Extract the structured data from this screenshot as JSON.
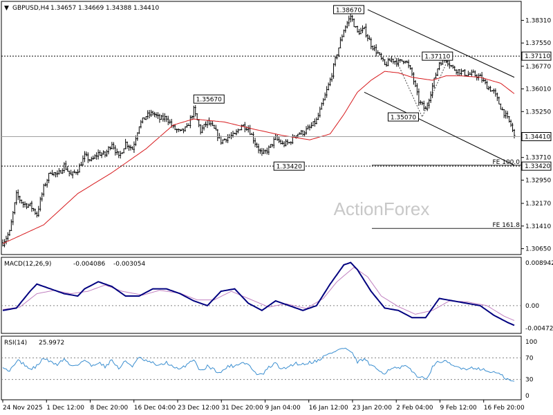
{
  "header": {
    "symbol_label": "GBPUSD,H4",
    "ohlc": [
      "1.34657",
      "1.34669",
      "1.34388",
      "1.34410"
    ]
  },
  "watermark": "ActionForex",
  "colors": {
    "candle": "#000000",
    "ma": "#d7191c",
    "macd_main": "#00007f",
    "macd_signal": "#c080c0",
    "rsi": "#3a8ed0",
    "grid": "#808080",
    "channel": "#000000"
  },
  "chart_data": [
    {
      "type": "candlestick",
      "name": "GBPUSD,H4",
      "ylim": [
        1.305,
        1.389
      ],
      "y_ticks": [
        "1.38310",
        "1.37550",
        "1.36770",
        "1.36010",
        "1.35250",
        "1.34410",
        "1.33710",
        "1.32950",
        "1.32170",
        "1.31410",
        "1.30650"
      ],
      "x_ticks": [
        "24 Nov 2025",
        "1 Dec 12:00",
        "8 Dec 20:00",
        "16 Dec 04:00",
        "23 Dec 12:00",
        "31 Dec 20:00",
        "9 Jan 04:00",
        "16 Jan 12:00",
        "23 Jan 20:00",
        "2 Feb 04:00",
        "9 Feb 12:00",
        "16 Feb 20:00"
      ],
      "close_profile": [
        [
          0,
          1.3085
        ],
        [
          4,
          1.312
        ],
        [
          8,
          1.3245
        ],
        [
          12,
          1.3215
        ],
        [
          16,
          1.321
        ],
        [
          20,
          1.318
        ],
        [
          24,
          1.327
        ],
        [
          28,
          1.3325
        ],
        [
          32,
          1.331
        ],
        [
          36,
          1.3345
        ],
        [
          40,
          1.331
        ],
        [
          44,
          1.333
        ],
        [
          48,
          1.3375
        ],
        [
          52,
          1.336
        ],
        [
          56,
          1.3385
        ],
        [
          60,
          1.338
        ],
        [
          64,
          1.342
        ],
        [
          68,
          1.337
        ],
        [
          72,
          1.342
        ],
        [
          76,
          1.34
        ],
        [
          80,
          1.348
        ],
        [
          84,
          1.351
        ],
        [
          88,
          1.352
        ],
        [
          92,
          1.35
        ],
        [
          96,
          1.3505
        ],
        [
          100,
          1.347
        ],
        [
          104,
          1.3455
        ],
        [
          108,
          1.347
        ],
        [
          112,
          1.353
        ],
        [
          116,
          1.346
        ],
        [
          120,
          1.349
        ],
        [
          124,
          1.3465
        ],
        [
          128,
          1.3425
        ],
        [
          132,
          1.344
        ],
        [
          136,
          1.3445
        ],
        [
          140,
          1.348
        ],
        [
          144,
          1.347
        ],
        [
          148,
          1.342
        ],
        [
          152,
          1.338
        ],
        [
          156,
          1.34
        ],
        [
          160,
          1.3435
        ],
        [
          164,
          1.3415
        ],
        [
          168,
          1.342
        ],
        [
          172,
          1.345
        ],
        [
          176,
          1.3455
        ],
        [
          180,
          1.347
        ],
        [
          184,
          1.3495
        ],
        [
          188,
          1.356
        ],
        [
          192,
          1.363
        ],
        [
          196,
          1.372
        ],
        [
          200,
          1.38
        ],
        [
          204,
          1.3845
        ],
        [
          208,
          1.379
        ],
        [
          212,
          1.38
        ],
        [
          216,
          1.375
        ],
        [
          220,
          1.372
        ],
        [
          224,
          1.368
        ],
        [
          228,
          1.37
        ],
        [
          232,
          1.369
        ],
        [
          236,
          1.37
        ],
        [
          240,
          1.365
        ],
        [
          244,
          1.356
        ],
        [
          248,
          1.353
        ],
        [
          252,
          1.361
        ],
        [
          256,
          1.369
        ],
        [
          260,
          1.37
        ],
        [
          264,
          1.367
        ],
        [
          268,
          1.366
        ],
        [
          272,
          1.365
        ],
        [
          276,
          1.365
        ],
        [
          280,
          1.364
        ],
        [
          284,
          1.361
        ],
        [
          288,
          1.359
        ],
        [
          292,
          1.354
        ],
        [
          296,
          1.35
        ],
        [
          298,
          1.348
        ],
        [
          300,
          1.3441
        ]
      ],
      "ma_profile": [
        [
          0,
          1.3082
        ],
        [
          24,
          1.3145
        ],
        [
          44,
          1.325
        ],
        [
          64,
          1.332
        ],
        [
          84,
          1.34
        ],
        [
          100,
          1.348
        ],
        [
          112,
          1.35
        ],
        [
          130,
          1.349
        ],
        [
          148,
          1.3465
        ],
        [
          164,
          1.3445
        ],
        [
          180,
          1.343
        ],
        [
          192,
          1.345
        ],
        [
          200,
          1.3515
        ],
        [
          208,
          1.359
        ],
        [
          216,
          1.363
        ],
        [
          224,
          1.366
        ],
        [
          232,
          1.3655
        ],
        [
          240,
          1.364
        ],
        [
          252,
          1.363
        ],
        [
          260,
          1.3645
        ],
        [
          268,
          1.3645
        ],
        [
          280,
          1.364
        ],
        [
          292,
          1.362
        ],
        [
          300,
          1.3585
        ]
      ],
      "price_labels": [
        "1.38670",
        "1.37110",
        "1.35670",
        "1.35070",
        "1.33420"
      ],
      "horizontal_levels": [
        {
          "label": "1.37110",
          "style": "dotted"
        },
        {
          "label": "1.34410",
          "style": "solid"
        },
        {
          "label": "1.33420",
          "style": "dotted"
        }
      ],
      "fibo_lines": [
        {
          "label": "FE 100.0",
          "value": 1.3345
        },
        {
          "label": "FE 161.8",
          "value": 1.3133
        }
      ]
    },
    {
      "type": "line",
      "name": "MACD(12,26,9)",
      "values_text": [
        "-0.004086",
        "-0.003054"
      ],
      "ylim": [
        -0.0055,
        0.0098
      ],
      "y_ticks": [
        "0.008942",
        "0.00",
        "-0.004725"
      ],
      "main_profile": [
        [
          0,
          -0.001
        ],
        [
          8,
          -0.0005
        ],
        [
          16,
          0.003
        ],
        [
          20,
          0.0045
        ],
        [
          28,
          0.0035
        ],
        [
          36,
          0.0025
        ],
        [
          44,
          0.002
        ],
        [
          48,
          0.0035
        ],
        [
          56,
          0.005
        ],
        [
          64,
          0.004
        ],
        [
          72,
          0.002
        ],
        [
          80,
          0.002
        ],
        [
          88,
          0.0035
        ],
        [
          96,
          0.0035
        ],
        [
          104,
          0.0025
        ],
        [
          112,
          0.001
        ],
        [
          120,
          0.0
        ],
        [
          128,
          0.003
        ],
        [
          136,
          0.0035
        ],
        [
          144,
          0.0005
        ],
        [
          152,
          -0.001
        ],
        [
          160,
          0.001
        ],
        [
          168,
          0.0
        ],
        [
          176,
          -0.001
        ],
        [
          184,
          0.0
        ],
        [
          192,
          0.0045
        ],
        [
          200,
          0.0085
        ],
        [
          204,
          0.009
        ],
        [
          208,
          0.0075
        ],
        [
          216,
          0.003
        ],
        [
          224,
          -0.0005
        ],
        [
          232,
          -0.001
        ],
        [
          240,
          -0.0025
        ],
        [
          248,
          -0.0025
        ],
        [
          256,
          0.0015
        ],
        [
          264,
          0.001
        ],
        [
          272,
          0.0005
        ],
        [
          280,
          0.0
        ],
        [
          288,
          -0.002
        ],
        [
          296,
          -0.0035
        ],
        [
          300,
          -0.0041
        ]
      ],
      "signal_profile": [
        [
          0,
          -0.0008
        ],
        [
          10,
          -0.0003
        ],
        [
          20,
          0.0025
        ],
        [
          30,
          0.0032
        ],
        [
          40,
          0.0025
        ],
        [
          50,
          0.003
        ],
        [
          60,
          0.0043
        ],
        [
          70,
          0.003
        ],
        [
          82,
          0.0022
        ],
        [
          92,
          0.0032
        ],
        [
          104,
          0.0026
        ],
        [
          114,
          0.0012
        ],
        [
          124,
          0.0012
        ],
        [
          134,
          0.003
        ],
        [
          146,
          0.0012
        ],
        [
          156,
          -0.0003
        ],
        [
          166,
          0.0004
        ],
        [
          178,
          -0.0006
        ],
        [
          188,
          0.0015
        ],
        [
          196,
          0.005
        ],
        [
          206,
          0.008
        ],
        [
          214,
          0.006
        ],
        [
          222,
          0.002
        ],
        [
          232,
          -0.0002
        ],
        [
          242,
          -0.0018
        ],
        [
          252,
          -0.001
        ],
        [
          262,
          0.001
        ],
        [
          272,
          0.0008
        ],
        [
          284,
          0.0
        ],
        [
          294,
          -0.0022
        ],
        [
          300,
          -0.0031
        ]
      ]
    },
    {
      "type": "line",
      "name": "RSI(14)",
      "value_text": "25.9972",
      "ylim": [
        0,
        100
      ],
      "y_ticks": [
        "100",
        "70",
        "30",
        "0"
      ],
      "reference_levels": [
        70,
        30
      ],
      "profile": [
        [
          0,
          55
        ],
        [
          4,
          45
        ],
        [
          8,
          65
        ],
        [
          12,
          60
        ],
        [
          16,
          48
        ],
        [
          20,
          55
        ],
        [
          24,
          70
        ],
        [
          28,
          62
        ],
        [
          32,
          58
        ],
        [
          36,
          68
        ],
        [
          40,
          55
        ],
        [
          44,
          58
        ],
        [
          48,
          66
        ],
        [
          52,
          55
        ],
        [
          56,
          62
        ],
        [
          60,
          54
        ],
        [
          64,
          66
        ],
        [
          68,
          50
        ],
        [
          72,
          64
        ],
        [
          76,
          55
        ],
        [
          80,
          70
        ],
        [
          84,
          64
        ],
        [
          88,
          60
        ],
        [
          92,
          55
        ],
        [
          96,
          62
        ],
        [
          100,
          52
        ],
        [
          104,
          48
        ],
        [
          108,
          58
        ],
        [
          112,
          68
        ],
        [
          116,
          45
        ],
        [
          120,
          55
        ],
        [
          124,
          48
        ],
        [
          128,
          42
        ],
        [
          132,
          55
        ],
        [
          136,
          55
        ],
        [
          140,
          62
        ],
        [
          144,
          58
        ],
        [
          148,
          42
        ],
        [
          152,
          38
        ],
        [
          156,
          52
        ],
        [
          160,
          60
        ],
        [
          164,
          48
        ],
        [
          168,
          55
        ],
        [
          172,
          60
        ],
        [
          176,
          58
        ],
        [
          180,
          62
        ],
        [
          184,
          64
        ],
        [
          188,
          72
        ],
        [
          192,
          78
        ],
        [
          196,
          84
        ],
        [
          200,
          88
        ],
        [
          204,
          82
        ],
        [
          208,
          62
        ],
        [
          212,
          68
        ],
        [
          216,
          55
        ],
        [
          220,
          48
        ],
        [
          224,
          42
        ],
        [
          228,
          52
        ],
        [
          232,
          50
        ],
        [
          236,
          55
        ],
        [
          240,
          45
        ],
        [
          244,
          35
        ],
        [
          248,
          30
        ],
        [
          252,
          52
        ],
        [
          256,
          64
        ],
        [
          260,
          62
        ],
        [
          264,
          55
        ],
        [
          268,
          52
        ],
        [
          272,
          50
        ],
        [
          276,
          52
        ],
        [
          280,
          50
        ],
        [
          284,
          45
        ],
        [
          288,
          44
        ],
        [
          292,
          38
        ],
        [
          296,
          30
        ],
        [
          298,
          27
        ],
        [
          300,
          26
        ]
      ]
    }
  ]
}
